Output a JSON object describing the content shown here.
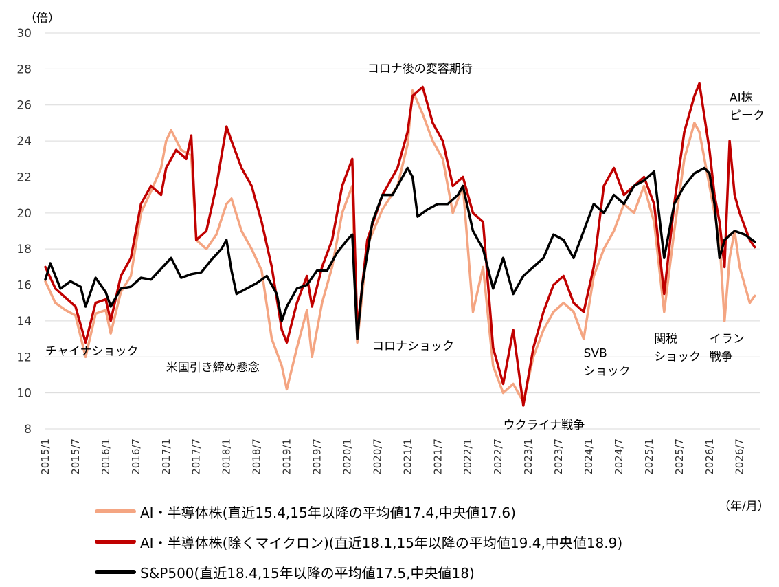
{
  "chart_data": {
    "type": "line",
    "y_unit": "（倍）",
    "x_unit": "（年/月）",
    "ylim": [
      8,
      30
    ],
    "yticks": [
      8,
      10,
      12,
      14,
      16,
      18,
      20,
      22,
      24,
      26,
      28,
      30
    ],
    "x_tick_labels": [
      "2015/1",
      "2015/7",
      "2016/1",
      "2016/7",
      "2017/1",
      "2017/7",
      "2018/1",
      "2018/7",
      "2019/1",
      "2019/7",
      "2020/1",
      "2020/7",
      "2021/1",
      "2021/7",
      "2022/1",
      "2022/7",
      "2023/1",
      "2023/7",
      "2024/1",
      "2024/7",
      "2025/1",
      "2025/7",
      "2026/1",
      "2026/7"
    ],
    "grid": "horizontal",
    "legend_position": "bottom",
    "series": [
      {
        "name": "AI・半導体株(直近15.4,15年以降の平均値17.4,中央値17.6)",
        "color": "#f4a582",
        "points": [
          [
            "2015/1",
            16.2
          ],
          [
            "2015/3",
            15.0
          ],
          [
            "2015/5",
            14.6
          ],
          [
            "2015/7",
            14.3
          ],
          [
            "2015/9",
            12.0
          ],
          [
            "2015/11",
            14.4
          ],
          [
            "2016/1",
            14.6
          ],
          [
            "2016/2",
            13.3
          ],
          [
            "2016/4",
            15.6
          ],
          [
            "2016/6",
            16.5
          ],
          [
            "2016/8",
            20.0
          ],
          [
            "2016/10",
            21.2
          ],
          [
            "2016/12",
            22.5
          ],
          [
            "2017/1",
            24.0
          ],
          [
            "2017/2",
            24.6
          ],
          [
            "2017/4",
            23.5
          ],
          [
            "2017/6",
            23.2
          ],
          [
            "2017/7",
            18.5
          ],
          [
            "2017/9",
            18.0
          ],
          [
            "2017/11",
            18.8
          ],
          [
            "2018/1",
            20.5
          ],
          [
            "2018/2",
            20.8
          ],
          [
            "2018/4",
            19.0
          ],
          [
            "2018/6",
            18.0
          ],
          [
            "2018/8",
            16.8
          ],
          [
            "2018/10",
            13.0
          ],
          [
            "2018/12",
            11.5
          ],
          [
            "2019/1",
            10.2
          ],
          [
            "2019/3",
            12.5
          ],
          [
            "2019/5",
            14.6
          ],
          [
            "2019/6",
            12.0
          ],
          [
            "2019/8",
            15.0
          ],
          [
            "2019/10",
            17.0
          ],
          [
            "2019/12",
            20.0
          ],
          [
            "2020/2",
            21.5
          ],
          [
            "2020/3",
            12.8
          ],
          [
            "2020/5",
            18.2
          ],
          [
            "2020/8",
            20.2
          ],
          [
            "2020/11",
            21.5
          ],
          [
            "2021/1",
            23.8
          ],
          [
            "2021/2",
            26.8
          ],
          [
            "2021/4",
            25.5
          ],
          [
            "2021/6",
            24.0
          ],
          [
            "2021/8",
            23.0
          ],
          [
            "2021/10",
            20.0
          ],
          [
            "2021/12",
            21.5
          ],
          [
            "2022/2",
            14.5
          ],
          [
            "2022/4",
            17.0
          ],
          [
            "2022/6",
            11.5
          ],
          [
            "2022/8",
            10.0
          ],
          [
            "2022/10",
            10.5
          ],
          [
            "2022/12",
            9.5
          ],
          [
            "2023/2",
            12.0
          ],
          [
            "2023/4",
            13.5
          ],
          [
            "2023/6",
            14.5
          ],
          [
            "2023/8",
            15.0
          ],
          [
            "2023/10",
            14.5
          ],
          [
            "2023/12",
            13.0
          ],
          [
            "2024/2",
            16.5
          ],
          [
            "2024/4",
            18.0
          ],
          [
            "2024/6",
            19.0
          ],
          [
            "2024/8",
            20.5
          ],
          [
            "2024/10",
            20.0
          ],
          [
            "2024/12",
            21.5
          ],
          [
            "2025/2",
            19.5
          ],
          [
            "2025/4",
            14.5
          ],
          [
            "2025/6",
            19.0
          ],
          [
            "2025/8",
            23.0
          ],
          [
            "2025/10",
            25.0
          ],
          [
            "2025/11",
            24.5
          ],
          [
            "2026/1",
            21.5
          ],
          [
            "2026/2",
            20.0
          ],
          [
            "2026/3",
            18.5
          ],
          [
            "2026/4",
            14.0
          ],
          [
            "2026/5",
            17.5
          ],
          [
            "2026/6",
            19.0
          ],
          [
            "2026/7",
            17.0
          ],
          [
            "2026/9",
            15.0
          ],
          [
            "2026/10",
            15.4
          ]
        ]
      },
      {
        "name": "AI・半導体株(除くマイクロン)(直近18.1,15年以降の平均値19.4,中央値18.9)",
        "color": "#c00000",
        "points": [
          [
            "2015/1",
            17.0
          ],
          [
            "2015/3",
            15.8
          ],
          [
            "2015/5",
            15.3
          ],
          [
            "2015/7",
            14.8
          ],
          [
            "2015/9",
            12.8
          ],
          [
            "2015/11",
            15.0
          ],
          [
            "2016/1",
            15.2
          ],
          [
            "2016/2",
            14.0
          ],
          [
            "2016/4",
            16.5
          ],
          [
            "2016/6",
            17.5
          ],
          [
            "2016/8",
            20.5
          ],
          [
            "2016/10",
            21.5
          ],
          [
            "2016/12",
            21.0
          ],
          [
            "2017/1",
            22.5
          ],
          [
            "2017/3",
            23.5
          ],
          [
            "2017/5",
            23.0
          ],
          [
            "2017/6",
            24.3
          ],
          [
            "2017/7",
            18.5
          ],
          [
            "2017/9",
            19.0
          ],
          [
            "2017/11",
            21.5
          ],
          [
            "2018/1",
            24.8
          ],
          [
            "2018/2",
            24.0
          ],
          [
            "2018/4",
            22.5
          ],
          [
            "2018/6",
            21.5
          ],
          [
            "2018/8",
            19.5
          ],
          [
            "2018/10",
            17.0
          ],
          [
            "2018/12",
            13.5
          ],
          [
            "2019/1",
            12.8
          ],
          [
            "2019/3",
            15.0
          ],
          [
            "2019/5",
            16.5
          ],
          [
            "2019/6",
            14.8
          ],
          [
            "2019/8",
            17.0
          ],
          [
            "2019/10",
            18.5
          ],
          [
            "2019/12",
            21.5
          ],
          [
            "2020/2",
            23.0
          ],
          [
            "2020/3",
            13.5
          ],
          [
            "2020/5",
            18.5
          ],
          [
            "2020/8",
            21.0
          ],
          [
            "2020/11",
            22.5
          ],
          [
            "2021/1",
            24.5
          ],
          [
            "2021/2",
            26.5
          ],
          [
            "2021/4",
            27.0
          ],
          [
            "2021/6",
            25.0
          ],
          [
            "2021/8",
            24.0
          ],
          [
            "2021/10",
            21.5
          ],
          [
            "2021/12",
            22.0
          ],
          [
            "2022/2",
            20.0
          ],
          [
            "2022/4",
            19.5
          ],
          [
            "2022/6",
            12.5
          ],
          [
            "2022/8",
            10.5
          ],
          [
            "2022/10",
            13.5
          ],
          [
            "2022/12",
            9.3
          ],
          [
            "2023/2",
            12.5
          ],
          [
            "2023/4",
            14.5
          ],
          [
            "2023/6",
            16.0
          ],
          [
            "2023/8",
            16.5
          ],
          [
            "2023/10",
            15.0
          ],
          [
            "2023/12",
            14.5
          ],
          [
            "2024/2",
            17.0
          ],
          [
            "2024/4",
            21.5
          ],
          [
            "2024/6",
            22.5
          ],
          [
            "2024/8",
            21.0
          ],
          [
            "2024/10",
            21.5
          ],
          [
            "2024/12",
            22.0
          ],
          [
            "2025/2",
            20.5
          ],
          [
            "2025/4",
            15.5
          ],
          [
            "2025/6",
            20.5
          ],
          [
            "2025/8",
            24.5
          ],
          [
            "2025/10",
            26.5
          ],
          [
            "2025/11",
            27.2
          ],
          [
            "2026/1",
            23.5
          ],
          [
            "2026/2",
            21.0
          ],
          [
            "2026/3",
            19.5
          ],
          [
            "2026/4",
            17.0
          ],
          [
            "2026/5",
            24.0
          ],
          [
            "2026/6",
            21.0
          ],
          [
            "2026/7",
            20.0
          ],
          [
            "2026/9",
            18.5
          ],
          [
            "2026/10",
            18.1
          ]
        ]
      },
      {
        "name": "S&P500(直近18.4,15年以降の平均値17.5,中央値18)",
        "color": "#000000",
        "points": [
          [
            "2015/1",
            16.3
          ],
          [
            "2015/2",
            17.2
          ],
          [
            "2015/4",
            15.8
          ],
          [
            "2015/6",
            16.2
          ],
          [
            "2015/8",
            15.9
          ],
          [
            "2015/9",
            14.8
          ],
          [
            "2015/11",
            16.4
          ],
          [
            "2016/1",
            15.6
          ],
          [
            "2016/2",
            14.8
          ],
          [
            "2016/4",
            15.8
          ],
          [
            "2016/6",
            15.9
          ],
          [
            "2016/8",
            16.4
          ],
          [
            "2016/10",
            16.3
          ],
          [
            "2016/12",
            16.9
          ],
          [
            "2017/2",
            17.5
          ],
          [
            "2017/4",
            16.4
          ],
          [
            "2017/6",
            16.6
          ],
          [
            "2017/8",
            16.7
          ],
          [
            "2017/10",
            17.4
          ],
          [
            "2017/12",
            18.0
          ],
          [
            "2018/1",
            18.5
          ],
          [
            "2018/2",
            16.8
          ],
          [
            "2018/3",
            15.5
          ],
          [
            "2018/5",
            15.8
          ],
          [
            "2018/7",
            16.1
          ],
          [
            "2018/9",
            16.5
          ],
          [
            "2018/11",
            15.5
          ],
          [
            "2018/12",
            14.0
          ],
          [
            "2019/1",
            14.8
          ],
          [
            "2019/3",
            15.8
          ],
          [
            "2019/5",
            16.0
          ],
          [
            "2019/7",
            16.8
          ],
          [
            "2019/9",
            16.8
          ],
          [
            "2019/11",
            17.8
          ],
          [
            "2020/1",
            18.5
          ],
          [
            "2020/2",
            18.8
          ],
          [
            "2020/3",
            13.0
          ],
          [
            "2020/4",
            16.0
          ],
          [
            "2020/6",
            19.5
          ],
          [
            "2020/8",
            21.0
          ],
          [
            "2020/10",
            21.0
          ],
          [
            "2020/12",
            22.0
          ],
          [
            "2021/1",
            22.5
          ],
          [
            "2021/2",
            22.0
          ],
          [
            "2021/3",
            19.8
          ],
          [
            "2021/5",
            20.2
          ],
          [
            "2021/7",
            20.5
          ],
          [
            "2021/9",
            20.5
          ],
          [
            "2021/11",
            21.0
          ],
          [
            "2021/12",
            21.5
          ],
          [
            "2022/2",
            19.0
          ],
          [
            "2022/4",
            18.0
          ],
          [
            "2022/6",
            15.8
          ],
          [
            "2022/8",
            17.5
          ],
          [
            "2022/10",
            15.5
          ],
          [
            "2022/12",
            16.5
          ],
          [
            "2023/2",
            17.0
          ],
          [
            "2023/4",
            17.5
          ],
          [
            "2023/6",
            18.8
          ],
          [
            "2023/8",
            18.5
          ],
          [
            "2023/10",
            17.5
          ],
          [
            "2023/12",
            19.0
          ],
          [
            "2024/2",
            20.5
          ],
          [
            "2024/4",
            20.0
          ],
          [
            "2024/6",
            21.0
          ],
          [
            "2024/8",
            20.5
          ],
          [
            "2024/10",
            21.5
          ],
          [
            "2024/12",
            21.8
          ],
          [
            "2025/2",
            22.3
          ],
          [
            "2025/4",
            17.5
          ],
          [
            "2025/6",
            20.5
          ],
          [
            "2025/8",
            21.5
          ],
          [
            "2025/10",
            22.2
          ],
          [
            "2025/12",
            22.5
          ],
          [
            "2026/1",
            22.2
          ],
          [
            "2026/2",
            20.5
          ],
          [
            "2026/3",
            17.5
          ],
          [
            "2026/4",
            18.5
          ],
          [
            "2026/6",
            19.0
          ],
          [
            "2026/8",
            18.8
          ],
          [
            "2026/10",
            18.4
          ]
        ]
      }
    ],
    "annotations": [
      {
        "lines": [
          "チャイナショック"
        ],
        "at": [
          "2015/1",
          12.1
        ]
      },
      {
        "lines": [
          "米国引き締め懸念"
        ],
        "at": [
          "2017/1",
          11.2
        ]
      },
      {
        "lines": [
          "コロナ後の変容期待"
        ],
        "at": [
          "2020/5",
          27.8
        ]
      },
      {
        "lines": [
          "コロナショック"
        ],
        "at": [
          "2020/6",
          12.4
        ]
      },
      {
        "lines": [
          "ウクライナ戦争"
        ],
        "at": [
          "2022/8",
          8.0
        ]
      },
      {
        "lines": [
          "SVB",
          "ショック"
        ],
        "at": [
          "2023/12",
          12.0
        ]
      },
      {
        "lines": [
          "関税",
          "ショック"
        ],
        "at": [
          "2025/2",
          12.8
        ]
      },
      {
        "lines": [
          "イラン",
          "戦争"
        ],
        "at": [
          "2026/1",
          12.8
        ]
      },
      {
        "lines": [
          "AI株",
          "ピーク"
        ],
        "at": [
          "2026/5",
          26.2
        ]
      }
    ]
  }
}
